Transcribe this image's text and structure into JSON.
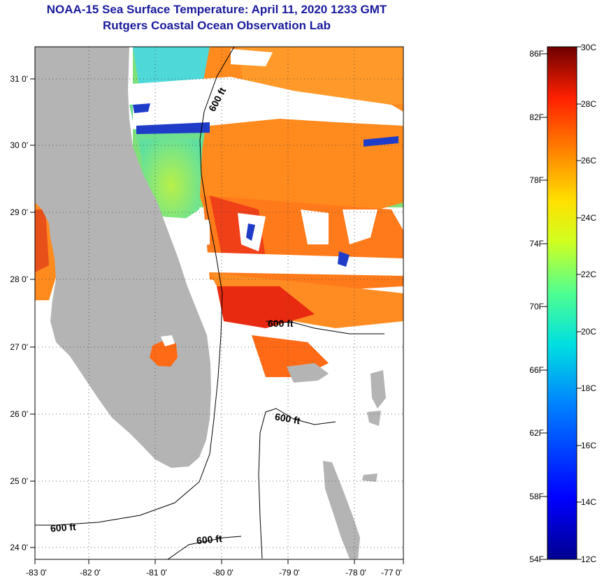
{
  "header": {
    "title_line1": "NOAA-15 Sea Surface Temperature:  April 11, 2020 1233 GMT",
    "title_line2": "Rutgers Coastal Ocean Observation Lab"
  },
  "map": {
    "lon_labels": [
      "-83 0'",
      "-82 0'",
      "-81 0'",
      "-80 0'",
      "-79 0'",
      "-78 0'",
      "-77 0'"
    ],
    "lat_labels": [
      "31 0'",
      "30 0'",
      "29 0'",
      "28 0'",
      "27 0'",
      "26 0'",
      "25 0'",
      "24 0'"
    ],
    "contour_labels": [
      "600 ft",
      "600 ft",
      "600 ft",
      "600 ft",
      "600 ft"
    ],
    "colors": {
      "land": "#b4b4b4",
      "cloud": "#ffffff",
      "warm": "#ff7a1a",
      "hot": "#e82a10",
      "cool": "#5ee0a0",
      "cold": "#1f3cc8"
    }
  },
  "colorbar": {
    "fahrenheit_labels": [
      "86F",
      "82F",
      "78F",
      "74F",
      "70F",
      "66F",
      "62F",
      "58F",
      "54F"
    ],
    "celsius_labels": [
      "30C",
      "28C",
      "26C",
      "24C",
      "22C",
      "20C",
      "18C",
      "16C",
      "14C",
      "12C"
    ]
  }
}
